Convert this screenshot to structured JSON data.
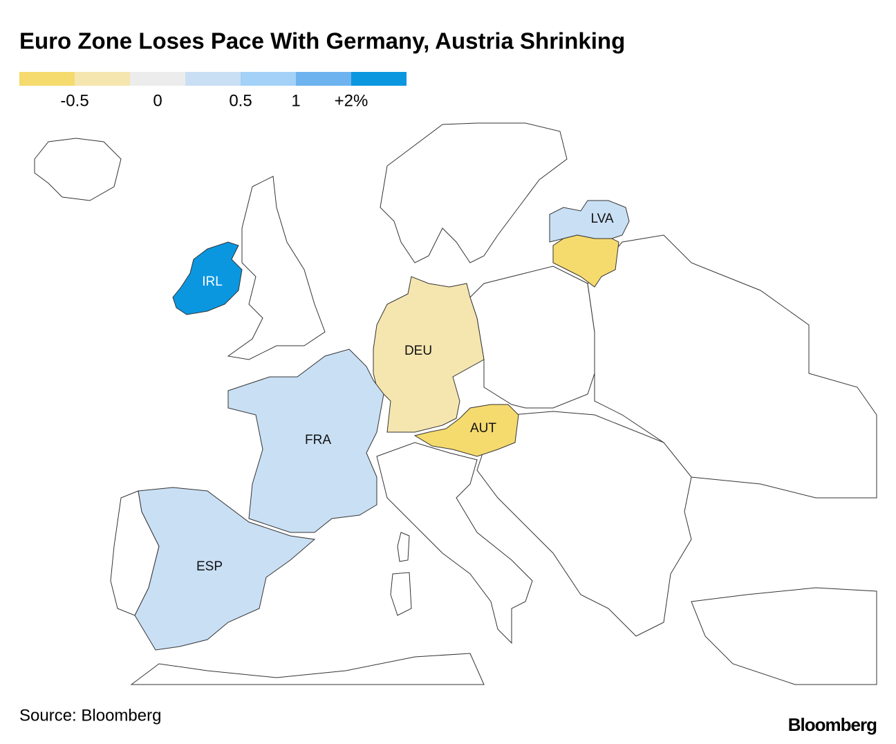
{
  "header": {
    "title": "Euro Zone Loses Pace With Germany, Austria Shrinking"
  },
  "legend": {
    "colors": [
      "#f5da6e",
      "#f5e6b0",
      "#ececec",
      "#c9dff4",
      "#a3d1f7",
      "#6cb3ef",
      "#0a97e0"
    ],
    "labels": [
      "-0.5",
      "0",
      "0.5",
      "1",
      "+2%"
    ]
  },
  "regions": [
    {
      "label": "IRL",
      "color": "#0a97e0",
      "label_color": "#ffffff"
    },
    {
      "label": "DEU",
      "color": "#f5e6b0"
    },
    {
      "label": "FRA",
      "color": "#c9dff4"
    },
    {
      "label": "ESP",
      "color": "#c9dff4"
    },
    {
      "label": "AUT",
      "color": "#f5da6e"
    },
    {
      "label": "LVA",
      "color": "#c9dff4"
    },
    {
      "color": "#f5da6e"
    }
  ],
  "footer": {
    "source": "Source: Bloomberg",
    "logo": "Bloomberg"
  }
}
